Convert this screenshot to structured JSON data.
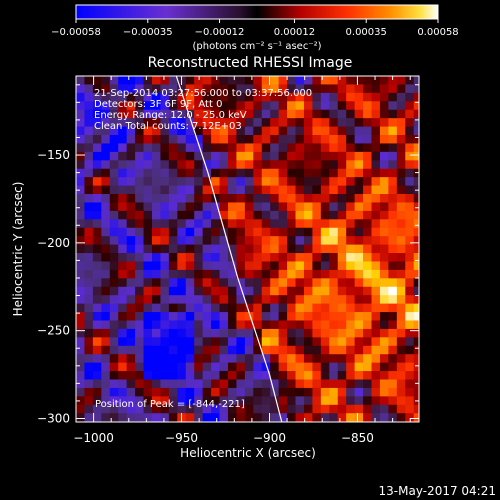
{
  "chart_data": {
    "type": "heatmap",
    "title": "Reconstructed RHESSI Image",
    "xlabel": "Heliocentric X (arcsec)",
    "ylabel": "Heliocentric Y (arcsec)",
    "xlim": [
      -1010,
      -815
    ],
    "ylim": [
      -302,
      -105
    ],
    "xticks": [
      -1000,
      -950,
      -900,
      -850
    ],
    "xtick_labels": [
      "−1000",
      "−950",
      "−900",
      "−850"
    ],
    "yticks": [
      -150,
      -200,
      -250,
      -300
    ],
    "ytick_labels": [
      "−150",
      "−200",
      "−250",
      "−300"
    ],
    "colorbar": {
      "min": -0.00058,
      "max": 0.00058,
      "ticks": [
        -0.00058,
        -0.00035,
        -0.00012,
        0.00012,
        0.00035,
        0.00058
      ],
      "tick_labels": [
        "−0.00058",
        "−0.00035",
        "−0.00012",
        "0.00012",
        "0.00035",
        "0.00058"
      ],
      "units": "(photons cm⁻² s⁻¹ asec⁻²)",
      "colors": [
        "#0000ff",
        "#5a2bd0",
        "#4b2f7a",
        "#2c0000",
        "#b40000",
        "#ff3300",
        "#ff8800",
        "#ffd000",
        "#ffffff"
      ]
    },
    "annotations": [
      "21-Sep-2014 03:27:56.000 to 03:37:56.000",
      "Detectors: 3F 6F 9F, Att 0",
      "Energy Range: 12.0 - 25.0 keV",
      "Clean     Total counts: 7.12E+03"
    ],
    "peak_label": "Position of Peak = [-844,-221]",
    "peak": [
      -844,
      -221
    ],
    "limb": [
      [
        -953,
        -105
      ],
      [
        -935,
        -160
      ],
      [
        -918,
        -220
      ],
      [
        -900,
        -275
      ],
      [
        -893,
        -302
      ]
    ]
  },
  "footer": {
    "date": "13-May-2017 04:21"
  }
}
